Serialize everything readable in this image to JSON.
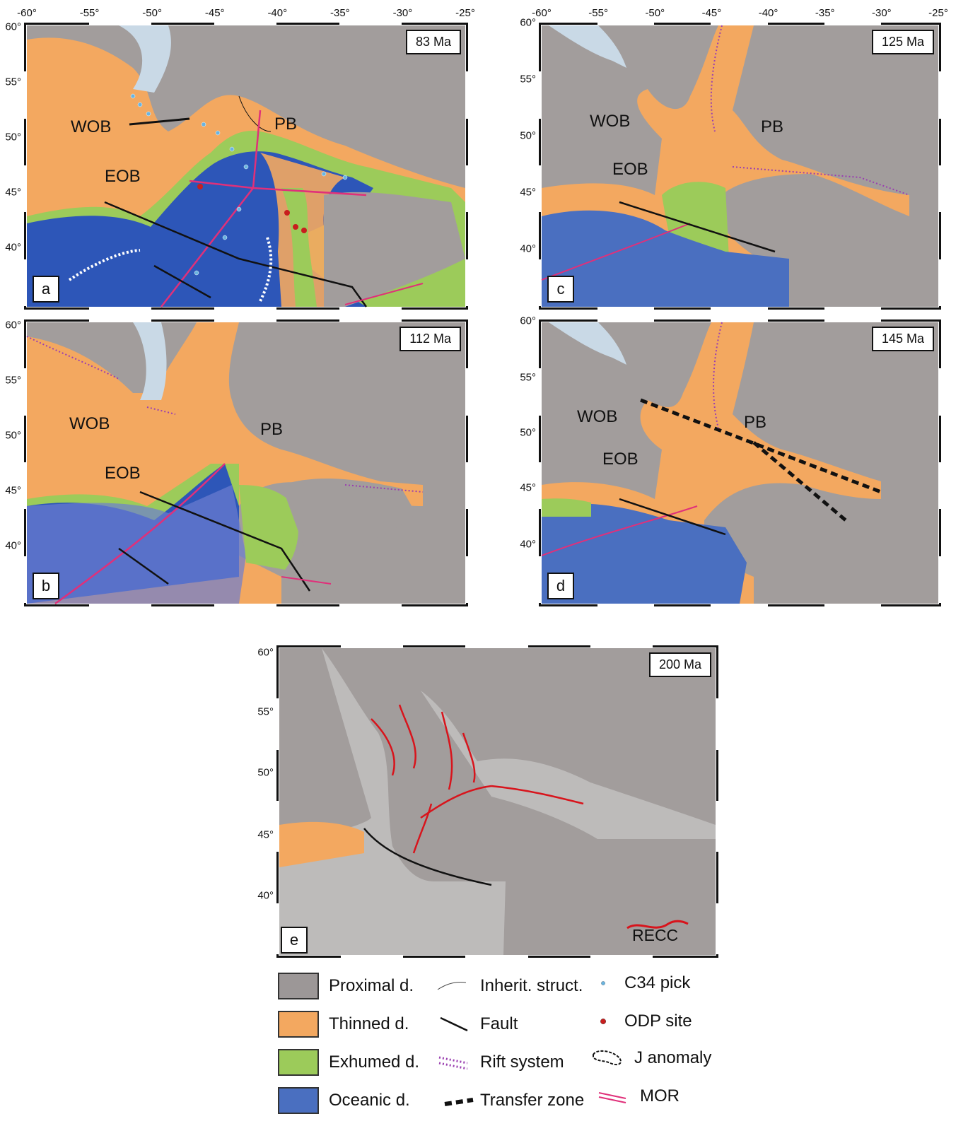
{
  "lon_ticks": [
    "-60°",
    "-55°",
    "-50°",
    "-45°",
    "-40°",
    "-35°",
    "-30°",
    "-25°"
  ],
  "lat_ticks": [
    "60°",
    "55°",
    "50°",
    "45°",
    "40°"
  ],
  "panels": {
    "a": {
      "age": "83 Ma",
      "letter": "a",
      "labels": {
        "wob": "WOB",
        "eob": "EOB",
        "pb": "PB"
      }
    },
    "b": {
      "age": "112 Ma",
      "letter": "b",
      "labels": {
        "wob": "WOB",
        "eob": "EOB",
        "pb": "PB"
      }
    },
    "c": {
      "age": "125 Ma",
      "letter": "c",
      "labels": {
        "wob": "WOB",
        "eob": "EOB",
        "pb": "PB"
      }
    },
    "d": {
      "age": "145 Ma",
      "letter": "d",
      "labels": {
        "wob": "WOB",
        "eob": "EOB",
        "pb": "PB"
      }
    },
    "e": {
      "age": "200 Ma",
      "letter": "e",
      "recc": "RECC"
    }
  },
  "legend": {
    "domains": [
      {
        "label": "Proximal d.",
        "color": "#9c9797"
      },
      {
        "label": "Thinned d.",
        "color": "#f3a860"
      },
      {
        "label": "Exhumed d.",
        "color": "#9ccb5a"
      },
      {
        "label": "Oceanic d.",
        "color": "#4a6fc0"
      }
    ],
    "lines": [
      {
        "label": "Inherit. struct.",
        "icon": "thin-line-icon"
      },
      {
        "label": "Fault",
        "icon": "fault-line-icon"
      },
      {
        "label": "Rift system",
        "icon": "rift-dotted-icon"
      },
      {
        "label": "Transfer zone",
        "icon": "transfer-dashed-icon"
      }
    ],
    "points": [
      {
        "label": "C34  pick",
        "icon": "blue-dot-icon",
        "color": "#6ab4e0"
      },
      {
        "label": "ODP site",
        "icon": "red-dot-icon",
        "color": "#c81e1e"
      },
      {
        "label": "J anomaly",
        "icon": "j-anomaly-icon"
      },
      {
        "label": "MOR",
        "icon": "mor-double-line-icon",
        "color": "#e0307a"
      }
    ]
  },
  "colors": {
    "proximal": "#9c9797",
    "thinned": "#f3a860",
    "exhumed": "#9ccb5a",
    "oceanic": "#4a6fc0",
    "oceanic_light": "#6c7ed0",
    "ice": "#c9d9e6",
    "recc": "#d8141c",
    "mor": "#e0307a",
    "rift": "#9a3fb0"
  }
}
